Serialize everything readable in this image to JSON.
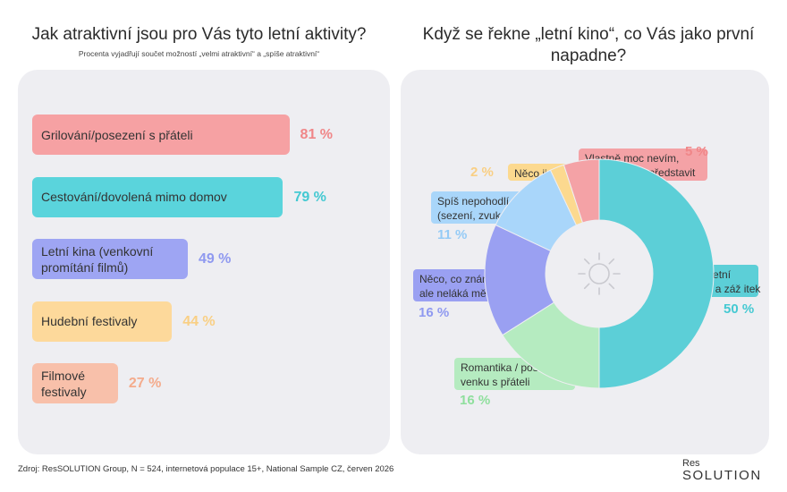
{
  "left": {
    "title": "Jak atraktivní jsou pro Vás tyto letní aktivity?",
    "subtitle": "Procenta vyjadřují součet možností „velmi atraktivní“ a „spíše atraktivní“"
  },
  "right": {
    "title": "Když se řekne „letní kino“, co Vás jako první napadne?",
    "center_icon": "sun-icon"
  },
  "chart_data": [
    {
      "type": "bar",
      "orientation": "horizontal",
      "categories": [
        "Grilování/posezení s přáteli",
        "Cestování/dovolená mimo domov",
        "Letní kina (venkovní promítání filmů)",
        "Hudební festivaly",
        "Filmové festivaly"
      ],
      "values": [
        81,
        79,
        49,
        44,
        27
      ],
      "value_labels": [
        "81 %",
        "79 %",
        "49 %",
        "44 %",
        "27 %"
      ],
      "colors": [
        "#f6a1a3",
        "#5ad4dc",
        "#9ea5f3",
        "#fdd99b",
        "#f8c0aa"
      ],
      "label_colors": [
        "#f08688",
        "#44c9d2",
        "#8f99f0",
        "#f9cf84",
        "#f4ab8c"
      ],
      "xlim": [
        0,
        100
      ]
    },
    {
      "type": "pie",
      "donut": true,
      "labels": [
        "Příjemná letní atmosféra a zážitek",
        "Romantika / posezení venku s přáteli",
        "Něco, co znám, ale neláká mě to",
        "Spíš nepohodlí (sezení, zvuk, počasí)",
        "Něco jiného",
        "Vlastně moc nevím, co si pod tím představit"
      ],
      "values": [
        50,
        16,
        16,
        11,
        2,
        5
      ],
      "value_labels": [
        "50 %",
        "16 %",
        "16 %",
        "11 %",
        "2 %",
        "5 %"
      ],
      "colors": [
        "#5ccfd7",
        "#b5ebc0",
        "#9aa0f2",
        "#a9d6fa",
        "#fcd98f",
        "#f4a2a6"
      ],
      "label_colors": [
        "#44c9d2",
        "#8fdf9d",
        "#8f99f0",
        "#95cbf6",
        "#f9cf84",
        "#f08688"
      ],
      "label_display": [
        "Příjemná letní\natmosféra a záž itek",
        "Romantika / posezení\nvenku s přáteli",
        "Něco, co znám,\nale neláká mě to",
        "Spíš nepohodlí\n(sezení, zvuk, počasí)",
        "Něco jiného",
        "Vlastně moc nevím,\nco si pod tím představit"
      ]
    }
  ],
  "footer": {
    "source": "Zdroj: ResSOLUTION Group, N = 524, internetová populace 15+, National Sample CZ, červen 2026"
  },
  "logo": {
    "top": "Res",
    "main": "SOLUTIΟN"
  }
}
